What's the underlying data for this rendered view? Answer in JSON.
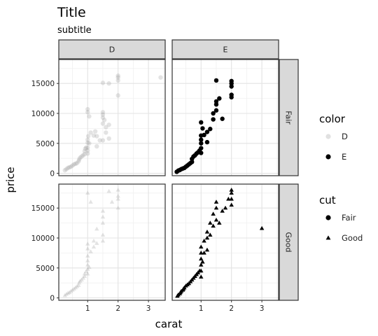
{
  "chart_data": {
    "type": "scatter",
    "title": "Title",
    "subtitle": "subtitle",
    "xlabel": "carat",
    "ylabel": "price",
    "xlim": [
      0.05,
      3.55
    ],
    "ylim": [
      -400,
      19000
    ],
    "x_ticks": [
      1,
      2,
      3
    ],
    "y_ticks": [
      0,
      5000,
      10000,
      15000
    ],
    "grid": true,
    "facet_cols": {
      "variable": "color",
      "levels": [
        "D",
        "E"
      ]
    },
    "facet_rows": {
      "variable": "cut",
      "levels": [
        "Fair",
        "Good"
      ]
    },
    "legends": [
      {
        "title": "color",
        "placement": "right",
        "entries": [
          {
            "label": "D",
            "style": "light"
          },
          {
            "label": "E",
            "style": "solid"
          }
        ]
      },
      {
        "title": "cut",
        "placement": "right",
        "entries": [
          {
            "label": "Fair",
            "shape": "circle"
          },
          {
            "label": "Good",
            "shape": "triangle"
          }
        ]
      }
    ],
    "panels": [
      {
        "color": "D",
        "cut": "Fair",
        "shape": "circle",
        "style": "light",
        "points": [
          [
            0.25,
            500
          ],
          [
            0.3,
            700
          ],
          [
            0.35,
            900
          ],
          [
            0.4,
            1000
          ],
          [
            0.45,
            1100
          ],
          [
            0.5,
            1300
          ],
          [
            0.55,
            1500
          ],
          [
            0.6,
            1600
          ],
          [
            0.65,
            1700
          ],
          [
            0.7,
            2000
          ],
          [
            0.72,
            2300
          ],
          [
            0.75,
            2600
          ],
          [
            0.8,
            2800
          ],
          [
            0.85,
            3000
          ],
          [
            0.9,
            3200
          ],
          [
            0.9,
            3700
          ],
          [
            0.92,
            4100
          ],
          [
            0.95,
            4300
          ],
          [
            1.0,
            3300
          ],
          [
            1.0,
            3800
          ],
          [
            1.0,
            4300
          ],
          [
            1.0,
            5100
          ],
          [
            1.0,
            5600
          ],
          [
            1.02,
            6200
          ],
          [
            1.05,
            5000
          ],
          [
            1.0,
            10200
          ],
          [
            1.0,
            10700
          ],
          [
            1.05,
            9500
          ],
          [
            1.1,
            6800
          ],
          [
            1.2,
            6300
          ],
          [
            1.25,
            7000
          ],
          [
            1.3,
            6200
          ],
          [
            1.3,
            4500
          ],
          [
            1.4,
            5500
          ],
          [
            1.5,
            5500
          ],
          [
            1.5,
            8300
          ],
          [
            1.5,
            9300
          ],
          [
            1.5,
            9800
          ],
          [
            1.5,
            10200
          ],
          [
            1.55,
            8900
          ],
          [
            1.6,
            7700
          ],
          [
            1.6,
            6800
          ],
          [
            1.7,
            8100
          ],
          [
            1.7,
            5800
          ],
          [
            1.5,
            15100
          ],
          [
            1.7,
            15000
          ],
          [
            2.0,
            13000
          ],
          [
            2.0,
            15500
          ],
          [
            2.0,
            16300
          ],
          [
            2.0,
            16000
          ],
          [
            3.4,
            16000
          ]
        ]
      },
      {
        "color": "E",
        "cut": "Fair",
        "shape": "circle",
        "style": "solid",
        "points": [
          [
            0.2,
            250
          ],
          [
            0.25,
            450
          ],
          [
            0.3,
            550
          ],
          [
            0.35,
            700
          ],
          [
            0.4,
            800
          ],
          [
            0.45,
            900
          ],
          [
            0.5,
            1100
          ],
          [
            0.55,
            1300
          ],
          [
            0.6,
            1500
          ],
          [
            0.65,
            1700
          ],
          [
            0.7,
            1900
          ],
          [
            0.7,
            2400
          ],
          [
            0.75,
            2800
          ],
          [
            0.8,
            3000
          ],
          [
            0.85,
            3300
          ],
          [
            0.9,
            3500
          ],
          [
            0.95,
            3800
          ],
          [
            1.0,
            3400
          ],
          [
            1.0,
            4200
          ],
          [
            1.0,
            5000
          ],
          [
            1.0,
            5600
          ],
          [
            1.0,
            6300
          ],
          [
            1.0,
            8500
          ],
          [
            1.05,
            7500
          ],
          [
            1.1,
            6400
          ],
          [
            1.2,
            6900
          ],
          [
            1.2,
            5200
          ],
          [
            1.3,
            7400
          ],
          [
            1.4,
            9000
          ],
          [
            1.4,
            10000
          ],
          [
            1.5,
            10500
          ],
          [
            1.5,
            11500
          ],
          [
            1.5,
            12000
          ],
          [
            1.5,
            15500
          ],
          [
            1.6,
            12500
          ],
          [
            1.7,
            9100
          ],
          [
            2.0,
            12700
          ],
          [
            2.0,
            13100
          ],
          [
            2.0,
            14500
          ],
          [
            2.0,
            15000
          ],
          [
            2.0,
            15400
          ]
        ]
      },
      {
        "color": "D",
        "cut": "Good",
        "shape": "triangle",
        "style": "light",
        "points": [
          [
            0.25,
            400
          ],
          [
            0.3,
            600
          ],
          [
            0.35,
            800
          ],
          [
            0.4,
            900
          ],
          [
            0.45,
            1100
          ],
          [
            0.5,
            1300
          ],
          [
            0.55,
            1500
          ],
          [
            0.6,
            1700
          ],
          [
            0.65,
            1900
          ],
          [
            0.7,
            2100
          ],
          [
            0.72,
            2500
          ],
          [
            0.75,
            2800
          ],
          [
            0.8,
            3000
          ],
          [
            0.85,
            3300
          ],
          [
            0.9,
            3600
          ],
          [
            0.9,
            4000
          ],
          [
            0.95,
            4400
          ],
          [
            1.0,
            4000
          ],
          [
            1.0,
            4800
          ],
          [
            1.0,
            5500
          ],
          [
            1.0,
            6200
          ],
          [
            1.0,
            7000
          ],
          [
            1.0,
            8200
          ],
          [
            1.0,
            9000
          ],
          [
            1.05,
            5100
          ],
          [
            1.1,
            7700
          ],
          [
            1.2,
            8500
          ],
          [
            1.2,
            9500
          ],
          [
            1.3,
            9100
          ],
          [
            1.3,
            11500
          ],
          [
            1.5,
            9500
          ],
          [
            1.5,
            10500
          ],
          [
            1.5,
            12500
          ],
          [
            1.5,
            13500
          ],
          [
            1.5,
            14500
          ],
          [
            1.7,
            17800
          ],
          [
            1.8,
            16000
          ],
          [
            2.0,
            15000
          ],
          [
            2.0,
            16500
          ],
          [
            2.0,
            17000
          ],
          [
            2.0,
            18000
          ],
          [
            1.0,
            17500
          ],
          [
            1.1,
            16000
          ]
        ]
      },
      {
        "color": "E",
        "cut": "Good",
        "shape": "triangle",
        "style": "solid",
        "points": [
          [
            0.22,
            300
          ],
          [
            0.25,
            500
          ],
          [
            0.3,
            700
          ],
          [
            0.32,
            900
          ],
          [
            0.35,
            1100
          ],
          [
            0.4,
            1300
          ],
          [
            0.42,
            1500
          ],
          [
            0.45,
            1700
          ],
          [
            0.5,
            2000
          ],
          [
            0.55,
            2200
          ],
          [
            0.6,
            2400
          ],
          [
            0.65,
            2700
          ],
          [
            0.7,
            3000
          ],
          [
            0.75,
            3300
          ],
          [
            0.8,
            3600
          ],
          [
            0.85,
            3900
          ],
          [
            0.9,
            4200
          ],
          [
            0.95,
            4500
          ],
          [
            1.0,
            3500
          ],
          [
            1.0,
            4500
          ],
          [
            1.0,
            5500
          ],
          [
            1.0,
            6500
          ],
          [
            1.0,
            7500
          ],
          [
            1.0,
            8500
          ],
          [
            1.05,
            6000
          ],
          [
            1.1,
            7500
          ],
          [
            1.1,
            9500
          ],
          [
            1.2,
            8000
          ],
          [
            1.2,
            10000
          ],
          [
            1.2,
            11000
          ],
          [
            1.3,
            10500
          ],
          [
            1.3,
            12500
          ],
          [
            1.4,
            12000
          ],
          [
            1.4,
            14000
          ],
          [
            1.5,
            13000
          ],
          [
            1.5,
            15000
          ],
          [
            1.5,
            16000
          ],
          [
            1.6,
            12500
          ],
          [
            1.7,
            14500
          ],
          [
            1.8,
            15000
          ],
          [
            1.9,
            16500
          ],
          [
            2.0,
            15500
          ],
          [
            2.0,
            16500
          ],
          [
            2.0,
            17500
          ],
          [
            2.0,
            18000
          ],
          [
            3.0,
            11600
          ]
        ]
      }
    ]
  }
}
